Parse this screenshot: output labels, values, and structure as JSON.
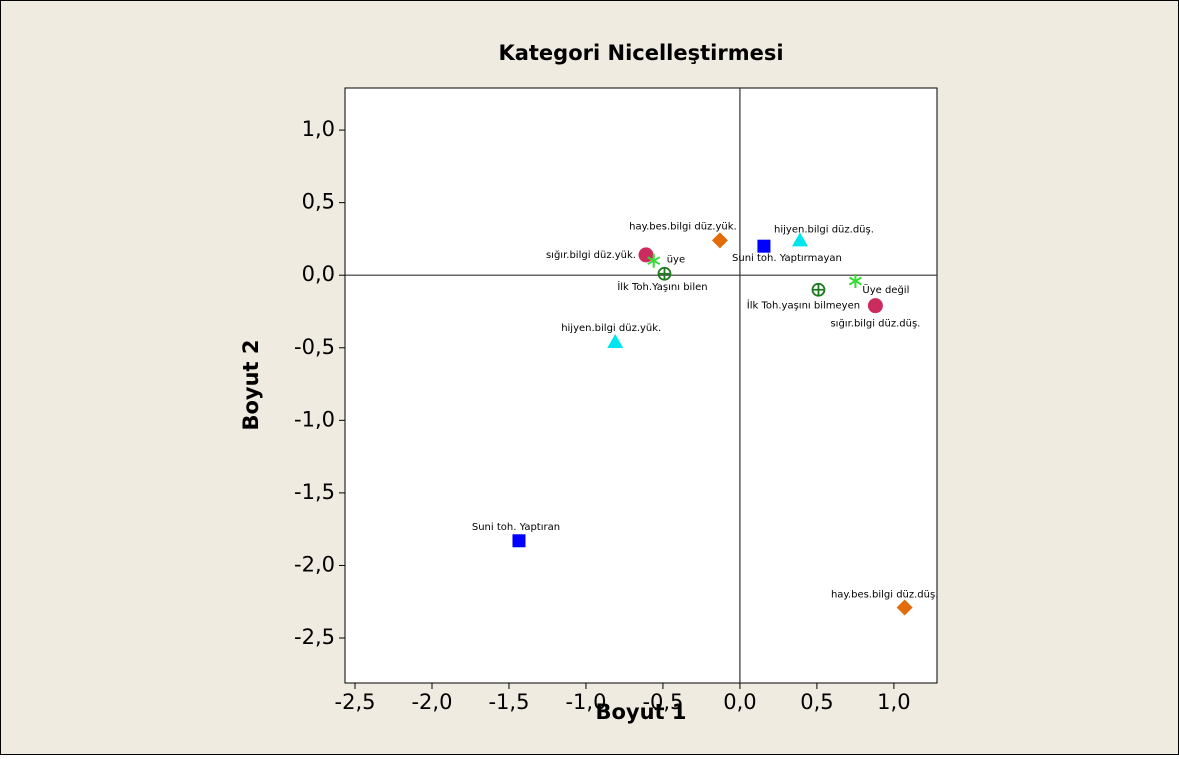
{
  "chart_data": {
    "type": "scatter",
    "title": "Kategori Nicelleştirmesi",
    "xlabel": "Boyut 1",
    "ylabel": "Boyut 2",
    "xlim": [
      -2.565,
      1.28
    ],
    "ylim": [
      -2.81,
      1.29
    ],
    "xticks": [
      {
        "value": -2.5,
        "label": "-2,5"
      },
      {
        "value": -2,
        "label": "-2,0"
      },
      {
        "value": -1.5,
        "label": "-1,5"
      },
      {
        "value": -1,
        "label": "-1,0"
      },
      {
        "value": -0.5,
        "label": "-0,5"
      },
      {
        "value": 0,
        "label": "0,0"
      },
      {
        "value": 0.5,
        "label": "0,5"
      },
      {
        "value": 1,
        "label": "1,0"
      }
    ],
    "yticks": [
      {
        "value": 1,
        "label": "1,0"
      },
      {
        "value": 0.5,
        "label": "0,5"
      },
      {
        "value": 0,
        "label": "0,0"
      },
      {
        "value": -0.5,
        "label": "-0,5"
      },
      {
        "value": -1,
        "label": "-1,0"
      },
      {
        "value": -1.5,
        "label": "-1,5"
      },
      {
        "value": -2,
        "label": "-2,0"
      },
      {
        "value": -2.5,
        "label": "-2,5"
      }
    ],
    "series": [
      {
        "marker": "square",
        "color": "#0000ff",
        "x": [
          -1.435,
          0.156
        ],
        "values": [
          -1.83,
          0.2
        ],
        "labels": [
          "Suni toh. Yaptıran",
          "Suni toh. Yaptırmayan"
        ]
      },
      {
        "marker": "diamond",
        "color": "#e36c0a",
        "x": [
          -0.13,
          1.07
        ],
        "values": [
          0.24,
          -2.29
        ],
        "labels": [
          "hay.bes.bilgi düz.yük.",
          "hay.bes.bilgi düz.düş."
        ]
      },
      {
        "marker": "triangle",
        "color": "#00e5ee",
        "x": [
          0.39,
          -0.81
        ],
        "values": [
          0.24,
          -0.46
        ],
        "labels": [
          "hijyen.bilgi düz.düş.",
          "hijyen.bilgi düz.yük."
        ]
      },
      {
        "marker": "circle",
        "color": "#cc2b5e",
        "x": [
          -0.61,
          0.88
        ],
        "values": [
          0.14,
          -0.21
        ],
        "labels": [
          "sığır.bilgi düz.yük.",
          "sığır.bilgi düz.düş."
        ]
      },
      {
        "marker": "asterisk",
        "color": "#33dd33",
        "x": [
          -0.56,
          0.75
        ],
        "values": [
          0.1,
          -0.04
        ],
        "labels": [
          "üye",
          "Üye değil"
        ]
      },
      {
        "marker": "circleplus",
        "color": "#1e7a1e",
        "x": [
          -0.49,
          0.51
        ],
        "values": [
          0.01,
          -0.1
        ],
        "labels": [
          "İlk Toh.Yaşını bilen",
          "İlk Toh.yaşını bilmeyen"
        ]
      }
    ]
  }
}
